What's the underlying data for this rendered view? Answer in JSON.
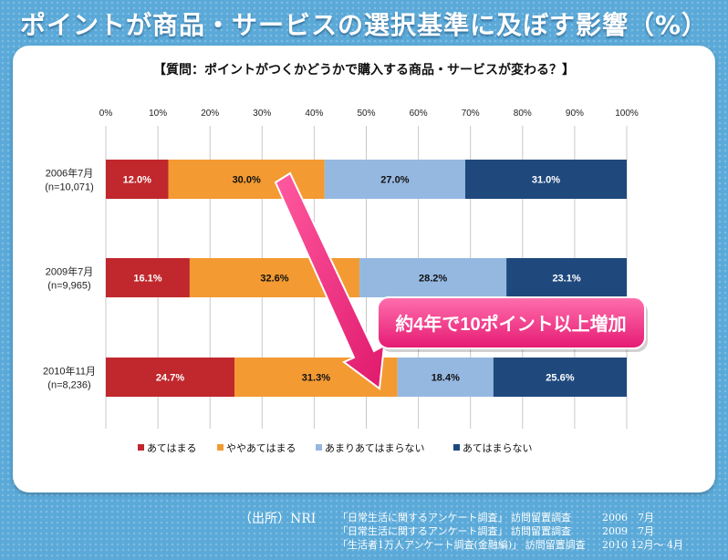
{
  "page": {
    "title": "ポイントが商品・サービスの選択基準に及ぼす影響（%）"
  },
  "chart_data": {
    "type": "bar",
    "orientation": "horizontal",
    "stacked": true,
    "title": "【質問：ポイントがつくかどうかで購入する商品・サービスが変わる？】",
    "xlim": [
      0,
      100
    ],
    "x_ticks": [
      "0%",
      "10%",
      "20%",
      "30%",
      "40%",
      "50%",
      "60%",
      "70%",
      "80%",
      "90%",
      "100%"
    ],
    "grid": true,
    "legend_position": "bottom",
    "categories": [
      {
        "label": "2006年7月",
        "sub": "(n=10,071)"
      },
      {
        "label": "2009年7月",
        "sub": "(n=9,965)"
      },
      {
        "label": "2010年11月",
        "sub": "(n=8,236)"
      }
    ],
    "series": [
      {
        "name": "あてはまる",
        "color": "#c0282d",
        "label_color": "#ffffff",
        "values": [
          12.0,
          16.1,
          24.7
        ],
        "labels": [
          "12.0%",
          "16.1%",
          "24.7%"
        ]
      },
      {
        "name": "ややあてはまる",
        "color": "#f39a32",
        "label_color": "#111111",
        "values": [
          30.0,
          32.6,
          31.3
        ],
        "labels": [
          "30.0%",
          "32.6%",
          "31.3%"
        ]
      },
      {
        "name": "あまりあてはまらない",
        "color": "#95b8e1",
        "label_color": "#111111",
        "values": [
          27.0,
          28.2,
          18.4
        ],
        "labels": [
          "27.0%",
          "28.2%",
          "18.4%"
        ]
      },
      {
        "name": "あてはまらない",
        "color": "#1f497d",
        "label_color": "#ffffff",
        "values": [
          31.0,
          23.1,
          25.6
        ],
        "labels": [
          "31.0%",
          "23.1%",
          "25.6%"
        ]
      }
    ],
    "annotation": "約4年で10ポイント以上増加"
  },
  "source": {
    "prefix": "（出所）NRI",
    "lines": [
      {
        "survey": "「日常生活に関するアンケート調査」 訪問留置調査",
        "date": "2006　7月"
      },
      {
        "survey": "「日常生活に関するアンケート調査」 訪問留置調査",
        "date": "2009　7月"
      },
      {
        "survey": "「生活者1万人アンケート調査(金融編)」 訪問留置調査",
        "date": "2010 12月～ 4月"
      }
    ]
  }
}
